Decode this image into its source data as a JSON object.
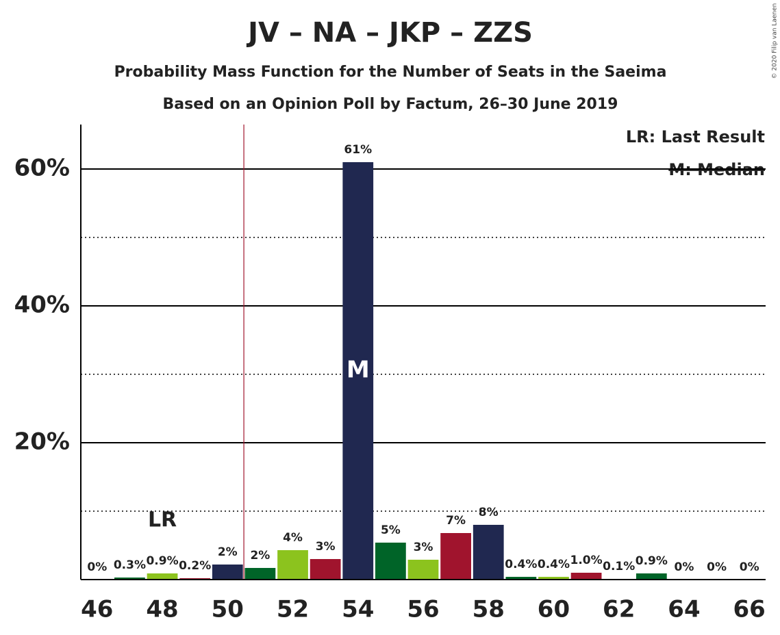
{
  "chart_data": {
    "type": "bar",
    "title": "JV – NA – JKP – ZZS",
    "subtitle": "Probability Mass Function for the Number of Seats in the Saeima",
    "subtitle2": "Based on an Opinion Poll by Factum, 26–30 June 2019",
    "copyright": "© 2020 Filip van Laenen",
    "x": [
      46,
      47,
      48,
      49,
      50,
      51,
      52,
      53,
      54,
      55,
      56,
      57,
      58,
      59,
      60,
      61,
      62,
      63,
      64,
      65,
      66
    ],
    "values": [
      0,
      0.3,
      0.9,
      0.2,
      2.2,
      1.7,
      4.3,
      3.0,
      61,
      5.4,
      2.9,
      6.8,
      8.0,
      0.4,
      0.4,
      1.0,
      0.1,
      0.9,
      0,
      0,
      0
    ],
    "value_labels": [
      "0%",
      "0.3%",
      "0.9%",
      "0.2%",
      "2%",
      "2%",
      "4%",
      "3%",
      "61%",
      "5%",
      "3%",
      "7%",
      "8%",
      "0.4%",
      "0.4%",
      "1.0%",
      "0.1%",
      "0.9%",
      "0%",
      "0%",
      "0%"
    ],
    "colors": [
      "#202850",
      "#006428",
      "#8cc31e",
      "#a0142d",
      "#202850",
      "#006428",
      "#8cc31e",
      "#a0142d",
      "#202850",
      "#006428",
      "#8cc31e",
      "#a0142d",
      "#202850",
      "#006428",
      "#8cc31e",
      "#a0142d",
      "#202850",
      "#006428",
      "#8cc31e",
      "#a0142d",
      "#202850"
    ],
    "xlim": [
      45.5,
      66.5
    ],
    "xticks": [
      46,
      48,
      50,
      52,
      54,
      56,
      58,
      60,
      62,
      64,
      66
    ],
    "ylim": [
      0,
      66.5
    ],
    "yticks": [
      {
        "value": 20,
        "label": "20%"
      },
      {
        "value": 40,
        "label": "40%"
      },
      {
        "value": 60,
        "label": "60%"
      }
    ],
    "minor_yticks": [
      10,
      30,
      50
    ],
    "majority_line": 50.5,
    "last_result": 48,
    "last_result_label": "LR",
    "median": 54,
    "median_label": "M",
    "legend": [
      "LR: Last Result",
      "M: Median"
    ]
  }
}
